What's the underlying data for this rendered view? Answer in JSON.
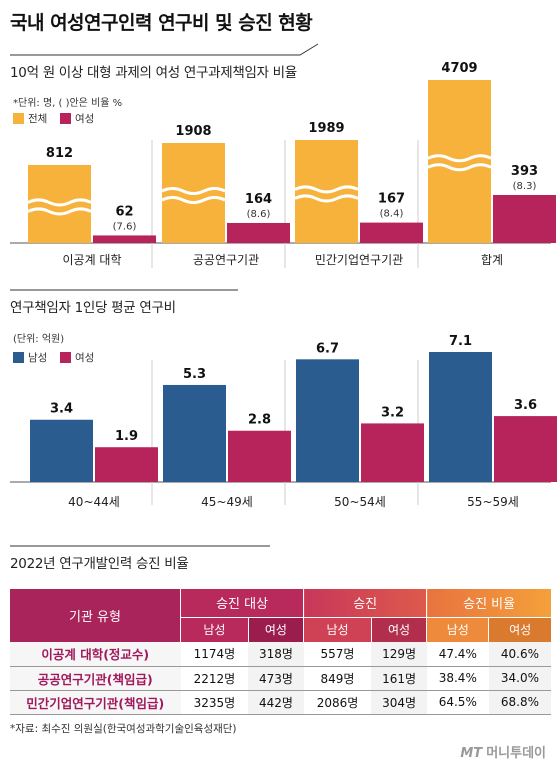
{
  "title": "국내 여성연구인력 연구비 및 승진 현황",
  "chart_data": [
    {
      "type": "bar",
      "title": "10억 원 이상 대형 과제의 여성 연구과제책임자 비율",
      "note": "*단위: 명, ( )안은 비율 %",
      "categories": [
        "이공계 대학",
        "공공연구기관",
        "민간기업연구기관",
        "합계"
      ],
      "series": [
        {
          "name": "전체",
          "values": [
            812,
            1908,
            1989,
            4709
          ]
        },
        {
          "name": "여성",
          "values": [
            62,
            164,
            167,
            393
          ]
        }
      ],
      "percent_labels": [
        "(7.6)",
        "(8.6)",
        "(8.4)",
        "(8.3)"
      ],
      "axis_break": true,
      "colors": {
        "전체": "#f7b23b",
        "여성": "#b7245c"
      }
    },
    {
      "type": "bar",
      "title": "연구책임자 1인당 평균 연구비",
      "note": "(단위: 억원)",
      "categories": [
        "40~44세",
        "45~49세",
        "50~54세",
        "55~59세"
      ],
      "series": [
        {
          "name": "남성",
          "values": [
            3.4,
            5.3,
            6.7,
            7.1
          ]
        },
        {
          "name": "여성",
          "values": [
            1.9,
            2.8,
            3.2,
            3.6
          ]
        }
      ],
      "ylim": [
        0,
        7.1
      ],
      "colors": {
        "남성": "#2b5c8f",
        "여성": "#b7245c"
      }
    },
    {
      "type": "table",
      "title": "2022년 연구개발인력 승진 비율",
      "header_first": "기관 유형",
      "groups": [
        "승진 대상",
        "승진",
        "승진 비율"
      ],
      "subheaders": [
        "남성",
        "여성",
        "남성",
        "여성",
        "남성",
        "여성"
      ],
      "rows": [
        {
          "label": "이공계 대학(정교수)",
          "cells": [
            "1174명",
            "318명",
            "557명",
            "129명",
            "47.4%",
            "40.6%"
          ]
        },
        {
          "label": "공공연구기관(책임급)",
          "cells": [
            "2212명",
            "473명",
            "849명",
            "161명",
            "38.4%",
            "34.0%"
          ]
        },
        {
          "label": "민간기업연구기관(책임급)",
          "cells": [
            "3235명",
            "442명",
            "2086명",
            "304명",
            "64.5%",
            "68.8%"
          ]
        }
      ]
    }
  ],
  "source": "*자료: 최수진 의원실(한국여성과학기술인육성재단)",
  "logo": {
    "mark": "MT",
    "name": "머니투데이"
  }
}
